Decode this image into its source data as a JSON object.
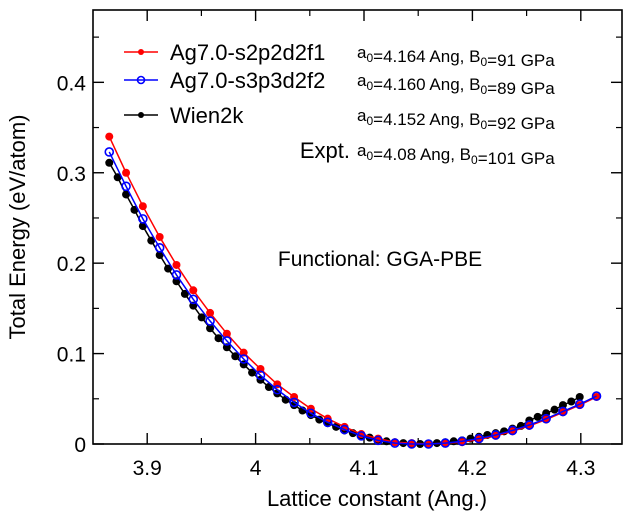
{
  "chart_data": {
    "type": "line",
    "title": "",
    "xlabel": "Lattice constant (Ang.)",
    "ylabel": "Total Energy (eV/atom)",
    "xlim": [
      3.85,
      4.338
    ],
    "ylim": [
      0,
      0.48
    ],
    "xticks": [
      3.9,
      4.0,
      4.1,
      4.2,
      4.3
    ],
    "xtick_labels": [
      "3.9",
      "4",
      "4.1",
      "4.2",
      "4.3"
    ],
    "xminor_ticks": [
      3.95,
      4.05,
      4.15,
      4.25
    ],
    "yticks": [
      0,
      0.1,
      0.2,
      0.3,
      0.4
    ],
    "ytick_labels": [
      "0",
      "0.1",
      "0.2",
      "0.3",
      "0.4"
    ],
    "yminor_ticks": [
      0.05,
      0.15,
      0.25,
      0.35,
      0.45
    ],
    "grid": false,
    "legend_position": "top-left",
    "series": [
      {
        "name": "Ag7.0-s2p2d2f1",
        "color": "#ff0000",
        "marker": "filled-circle",
        "params": {
          "a0": "4.164",
          "a0_unit": "Ang",
          "B0": "91",
          "B0_unit": "GPa"
        },
        "x_start": 3.865,
        "x_step": 0.0155,
        "values": [
          0.34,
          0.3,
          0.263,
          0.229,
          0.198,
          0.17,
          0.145,
          0.122,
          0.101,
          0.083,
          0.066,
          0.052,
          0.039,
          0.028,
          0.019,
          0.011,
          0.006,
          0.002,
          0.001,
          0.0,
          0.001,
          0.002,
          0.005,
          0.009,
          0.014,
          0.02,
          0.027,
          0.035,
          0.043,
          0.052
        ]
      },
      {
        "name": "Ag7.0-s3p3d2f2",
        "color": "#0000ff",
        "marker": "open-circle",
        "params": {
          "a0": "4.160",
          "a0_unit": "Ang",
          "B0": "89",
          "B0_unit": "GPa"
        },
        "x_start": 3.865,
        "x_step": 0.0155,
        "values": [
          0.323,
          0.285,
          0.249,
          0.217,
          0.187,
          0.16,
          0.136,
          0.114,
          0.094,
          0.076,
          0.06,
          0.046,
          0.034,
          0.024,
          0.016,
          0.009,
          0.004,
          0.001,
          0.0,
          0.0,
          0.001,
          0.003,
          0.006,
          0.01,
          0.015,
          0.021,
          0.028,
          0.036,
          0.044,
          0.053
        ]
      },
      {
        "name": "Wien2k",
        "color": "#000000",
        "marker": "filled-circle",
        "params": {
          "a0": "4.152",
          "a0_unit": "Ang",
          "B0": "92",
          "B0_unit": "GPa"
        },
        "x_start": 3.865,
        "x_step": 0.00775,
        "values": [
          0.311,
          0.295,
          0.276,
          0.259,
          0.241,
          0.225,
          0.209,
          0.194,
          0.18,
          0.166,
          0.153,
          0.14,
          0.128,
          0.117,
          0.107,
          0.097,
          0.088,
          0.079,
          0.071,
          0.063,
          0.056,
          0.049,
          0.043,
          0.037,
          0.032,
          0.027,
          0.023,
          0.019,
          0.015,
          0.012,
          0.009,
          0.007,
          0.005,
          0.003,
          0.002,
          0.001,
          0.0,
          0.0,
          0.0,
          0.001,
          0.002,
          0.003,
          0.004,
          0.006,
          0.008,
          0.01,
          0.012,
          0.014,
          0.017,
          0.02,
          0.026,
          0.03,
          0.034,
          0.038,
          0.043,
          0.047,
          0.052
        ]
      }
    ],
    "expt": {
      "label": "Expt.",
      "params": {
        "a0": "4.08",
        "a0_unit": "Ang",
        "B0": "101",
        "B0_unit": "GPa"
      }
    },
    "annotations": [
      "Functional: GGA-PBE"
    ]
  }
}
